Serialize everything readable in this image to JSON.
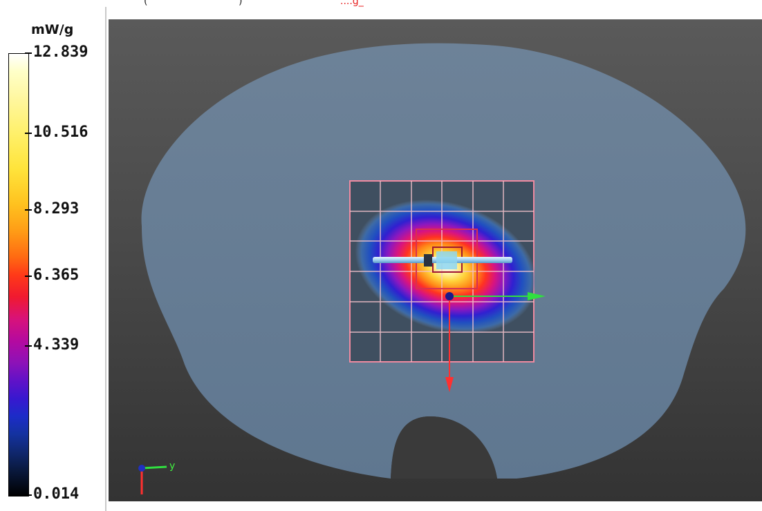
{
  "header": {
    "fragment_left": "(",
    "fragment_mid": ")",
    "fragment_red": "....g_"
  },
  "legend": {
    "unit": "mW/g",
    "ticks": [
      {
        "label": "12.839",
        "level": 1.0
      },
      {
        "label": "10.516",
        "level": 0.8188
      },
      {
        "label": "8.293",
        "level": 0.6454
      },
      {
        "label": "6.365",
        "level": 0.495
      },
      {
        "label": "4.339",
        "level": 0.337
      },
      {
        "label": "0.014",
        "level": 0.0
      }
    ]
  },
  "viewport": {
    "axis_label": "y",
    "colors": {
      "background": "#4a4a4a",
      "phantom": "#667c94",
      "grid": "#f0a0b0",
      "axis_x": "#ff3030",
      "axis_y": "#30e040",
      "origin": "#1a1a8a"
    }
  }
}
